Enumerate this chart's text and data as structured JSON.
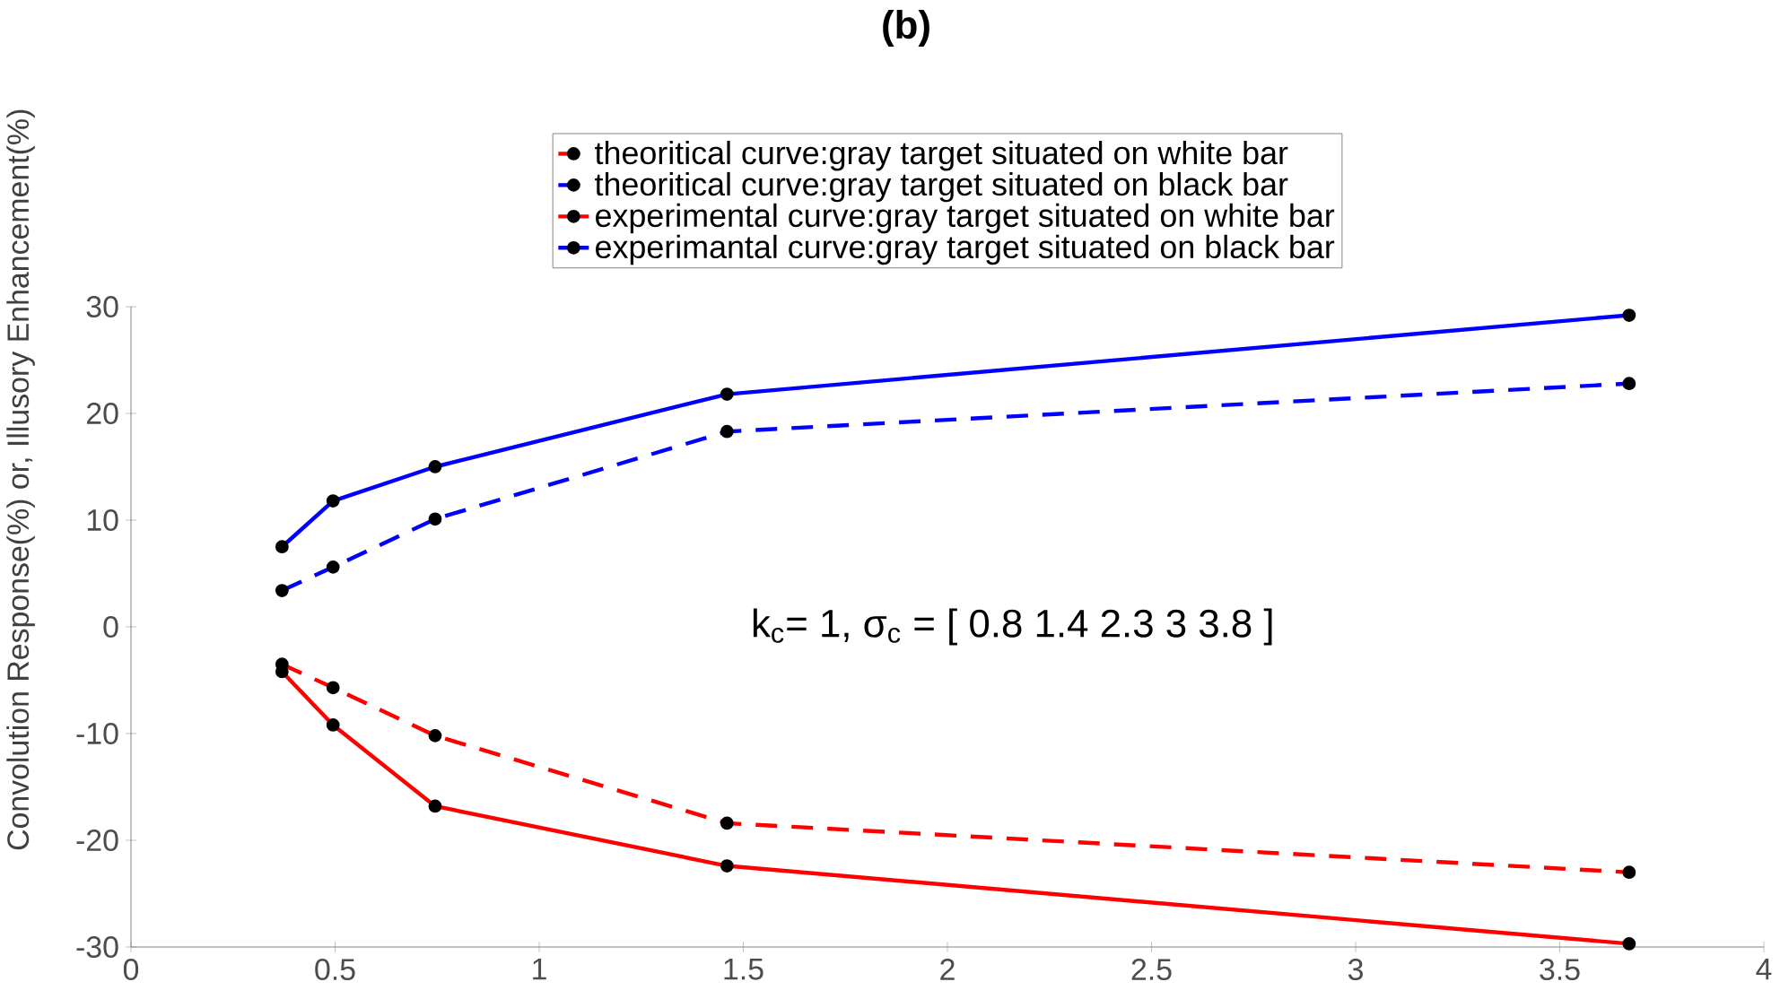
{
  "chart_data": {
    "type": "line",
    "title": "(b)",
    "ylabel": "Convolution Response(%) or, Illusory Enhancement(%)",
    "x": [
      0.37,
      0.495,
      0.745,
      1.46,
      3.67
    ],
    "series": [
      {
        "name": "theoritical curve:gray target situated on white bar",
        "color": "#ff0000",
        "line_style": "dashed",
        "values": [
          -3.5,
          -5.7,
          -10.2,
          -18.4,
          -23
        ]
      },
      {
        "name": "theoritical curve:gray target situated on black bar",
        "color": "#0000ff",
        "line_style": "dashed",
        "values": [
          3.4,
          5.6,
          10.1,
          18.3,
          22.8
        ]
      },
      {
        "name": "experimental curve:gray target situated on white bar",
        "color": "#ff0000",
        "line_style": "solid",
        "values": [
          -4.2,
          -9.2,
          -16.8,
          -22.4,
          -29.7
        ]
      },
      {
        "name": "experimantal curve:gray target situated on black bar",
        "color": "#0000ff",
        "line_style": "solid",
        "values": [
          7.5,
          11.8,
          15,
          21.8,
          29.2
        ]
      }
    ],
    "xlim": [
      0,
      4
    ],
    "ylim": [
      -30,
      30
    ],
    "xticks": [
      0,
      0.5,
      1,
      1.5,
      2,
      2.5,
      3,
      3.5,
      4
    ],
    "yticks": [
      -30,
      -20,
      -10,
      0,
      10,
      20,
      30
    ],
    "marker": "circle",
    "legend": "top",
    "grid": false,
    "annotations": [
      "k$_{c}$= 1, σ$_{c}$ = [ 0.8  1.4  2.3  3  3.8 ]"
    ]
  }
}
